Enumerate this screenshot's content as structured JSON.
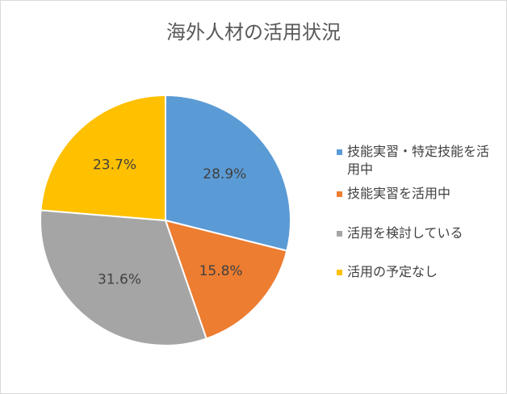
{
  "chart_data": {
    "type": "pie",
    "title": "海外人材の活用状況",
    "categories": [
      "技能実習・特定技能を活用中",
      "技能実習を活用中",
      "活用を検討している",
      "活用の予定なし"
    ],
    "values": [
      28.9,
      15.8,
      31.6,
      23.7
    ],
    "value_labels": [
      "28.9%",
      "15.8%",
      "31.6%",
      "23.7%"
    ],
    "colors": [
      "#5b9bd5",
      "#ed7d31",
      "#a5a5a5",
      "#ffc000"
    ],
    "legend": "right"
  }
}
